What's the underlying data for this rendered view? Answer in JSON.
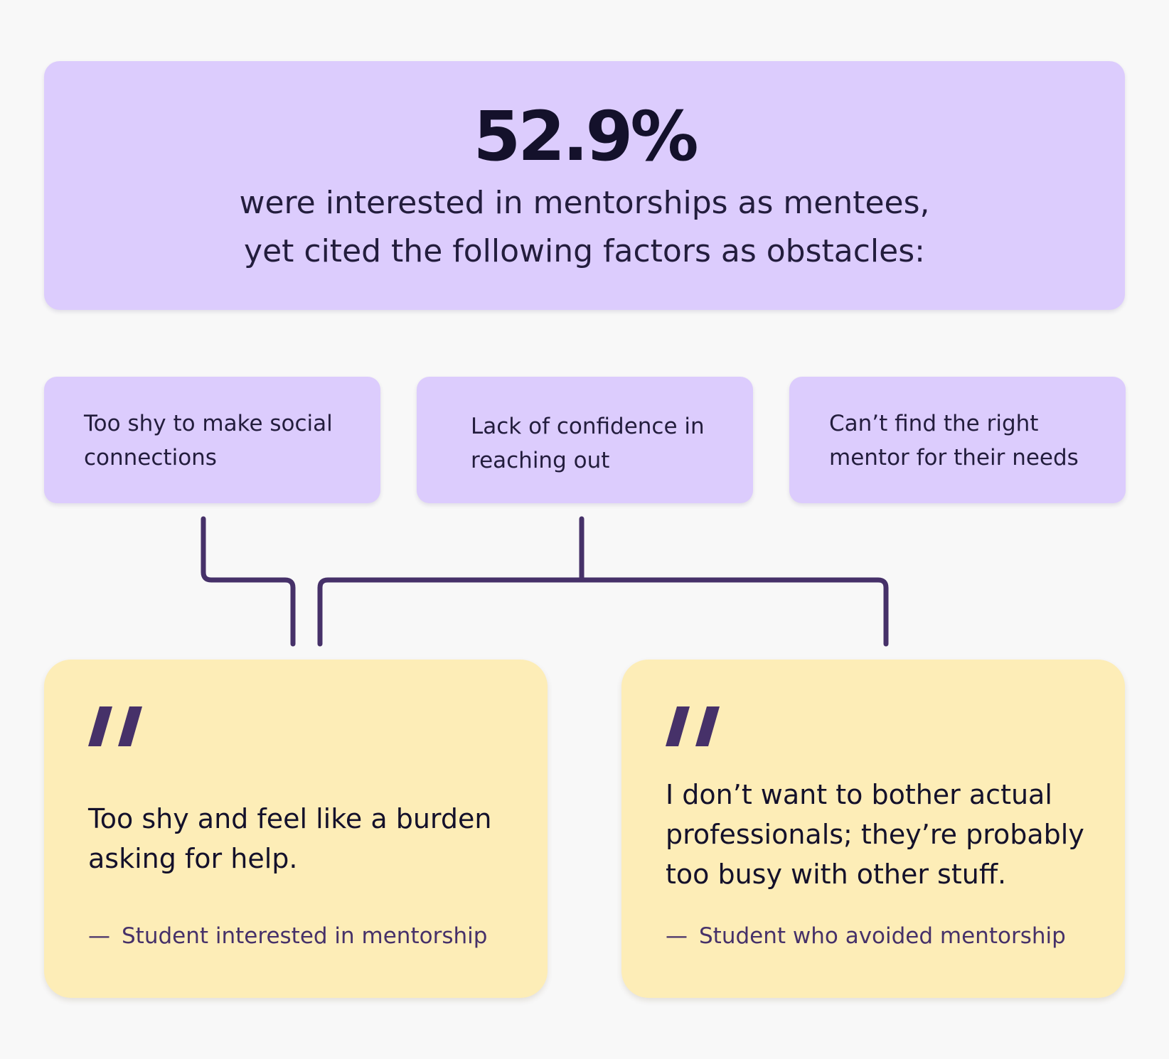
{
  "headline": {
    "stat": "52.9%",
    "line1": "were interested in mentorships as mentees,",
    "line2": "yet cited the following factors as obstacles:"
  },
  "factors": [
    {
      "line1": "Too shy to make social",
      "line2": "connections"
    },
    {
      "line1": "Lack of confidence in",
      "line2": "reaching out"
    },
    {
      "line1": "Can’t find the right",
      "line2": "mentor for their needs"
    }
  ],
  "quotes": [
    {
      "lines": [
        "Too shy and feel like a burden",
        "asking for help."
      ],
      "attribution": "Student interested in mentorship"
    },
    {
      "lines": [
        "I don’t want to bother actual",
        "professionals; they’re probably",
        "too busy with other stuff."
      ],
      "attribution": "Student who avoided mentorship"
    }
  ],
  "attribution_dash": "—",
  "colors": {
    "background": "#f8f8f8",
    "lavender": "#dcccfd",
    "cream": "#fdedb7",
    "accent": "#463169",
    "text": "#14112b"
  },
  "icons": {
    "quote_mark": "quote-mark-icon"
  }
}
